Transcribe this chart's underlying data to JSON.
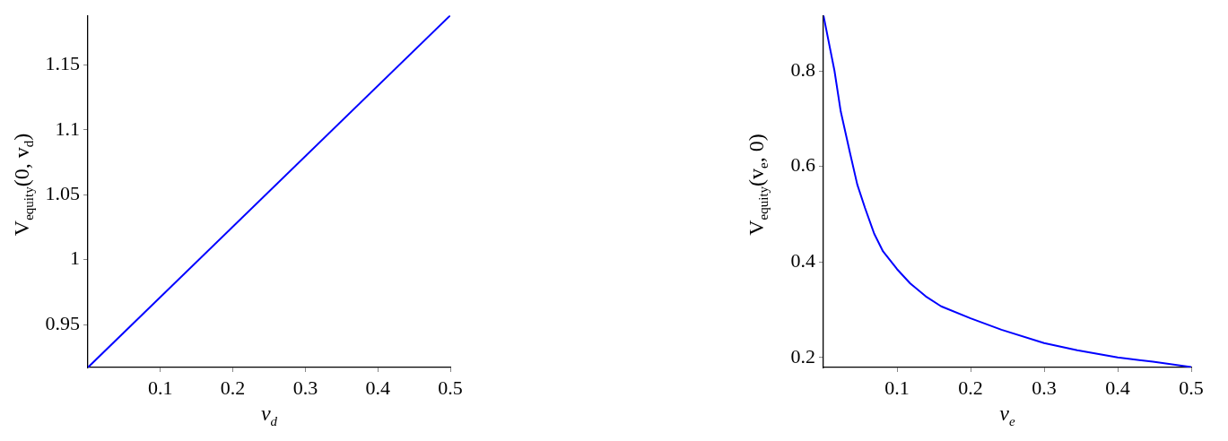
{
  "chart_data": [
    {
      "type": "line",
      "xlabel": "v$_{d}$",
      "ylabel": "V$_{equity}$(0, v$_{d}$)",
      "xlim": [
        0,
        0.5
      ],
      "xticks": [
        0.1,
        0.2,
        0.3,
        0.4,
        0.5
      ],
      "ylim": [
        0.917,
        1.188
      ],
      "yticks": [
        0.95,
        1,
        1.05,
        1.1,
        1.15
      ],
      "series": [
        {
          "color": "#0000ff",
          "x": [
            0,
            0.5
          ],
          "values": [
            0.917,
            1.188
          ]
        }
      ]
    },
    {
      "type": "line",
      "xlabel": "v$_{e}$",
      "ylabel": "V$_{equity}$(v$_{e}$, 0)",
      "xlim": [
        0,
        0.5
      ],
      "xticks": [
        0.1,
        0.2,
        0.3,
        0.4,
        0.5
      ],
      "ylim": [
        0.179,
        0.916
      ],
      "yticks": [
        0.2,
        0.4,
        0.6,
        0.8
      ],
      "series": [
        {
          "color": "#0000ff",
          "x": [
            0,
            0.015,
            0.0235,
            0.036,
            0.046,
            0.0565,
            0.069,
            0.081,
            0.1,
            0.118,
            0.139,
            0.16,
            0.2,
            0.242,
            0.3,
            0.345,
            0.4,
            0.448,
            0.5
          ],
          "values": [
            0.916,
            0.8,
            0.715,
            0.629,
            0.562,
            0.513,
            0.459,
            0.422,
            0.385,
            0.355,
            0.328,
            0.307,
            0.282,
            0.258,
            0.23,
            0.215,
            0.2,
            0.191,
            0.18
          ]
        }
      ]
    }
  ]
}
